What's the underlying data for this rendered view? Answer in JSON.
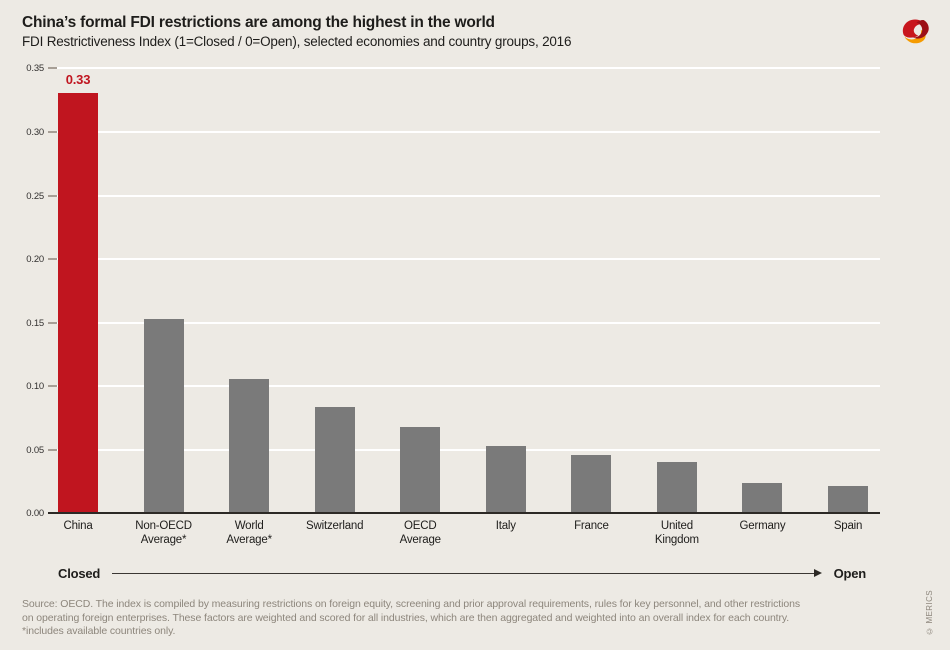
{
  "header": {
    "title": "China’s formal FDI restrictions are among the highest in the world",
    "subtitle": "FDI Restrictiveness Index (1=Closed / 0=Open), selected economies and country groups, 2016"
  },
  "chart_data": {
    "type": "bar",
    "categories": [
      "China",
      "Non-OECD Average*",
      "World Average*",
      "Switzerland",
      "OECD Average",
      "Italy",
      "France",
      "United Kingdom",
      "Germany",
      "Spain"
    ],
    "values": [
      0.33,
      0.152,
      0.105,
      0.083,
      0.067,
      0.052,
      0.045,
      0.04,
      0.023,
      0.021
    ],
    "value_labels": [
      "0.33",
      "",
      "",
      "",
      "",
      "",
      "",
      "",
      "",
      ""
    ],
    "highlight_index": 0,
    "y_tick_labels": [
      "0.00",
      "0.05",
      "0.10",
      "0.15",
      "0.20",
      "0.25",
      "0.30",
      "0.35"
    ],
    "ylim": [
      0,
      0.35
    ],
    "grid": "horizontal white lines",
    "legend": "none",
    "bar_color": "#7a7a7a",
    "highlight_color": "#c0151f",
    "closed_label": "Closed",
    "open_label": "Open"
  },
  "footer": {
    "source_lines": [
      "Source: OECD. The index is compiled by measuring restrictions on foreign equity, screening and prior approval requirements, rules for key personnel, and other restrictions",
      "on operating foreign enterprises. These factors are weighted and scored for all industries, which are then aggregated and weighted into an overall index for each country.",
      "*includes available countries only."
    ],
    "copyright": "© MERICS"
  },
  "colors": {
    "background": "#edeae4",
    "gridline": "#ffffff",
    "baseline": "#2c2925",
    "tick": "#a79f96",
    "title_text": "#1e1d1b",
    "footer_text": "#8d867c",
    "logo_red": "#c8161d",
    "logo_dark_red": "#9c1017",
    "logo_orange": "#f59b00"
  }
}
